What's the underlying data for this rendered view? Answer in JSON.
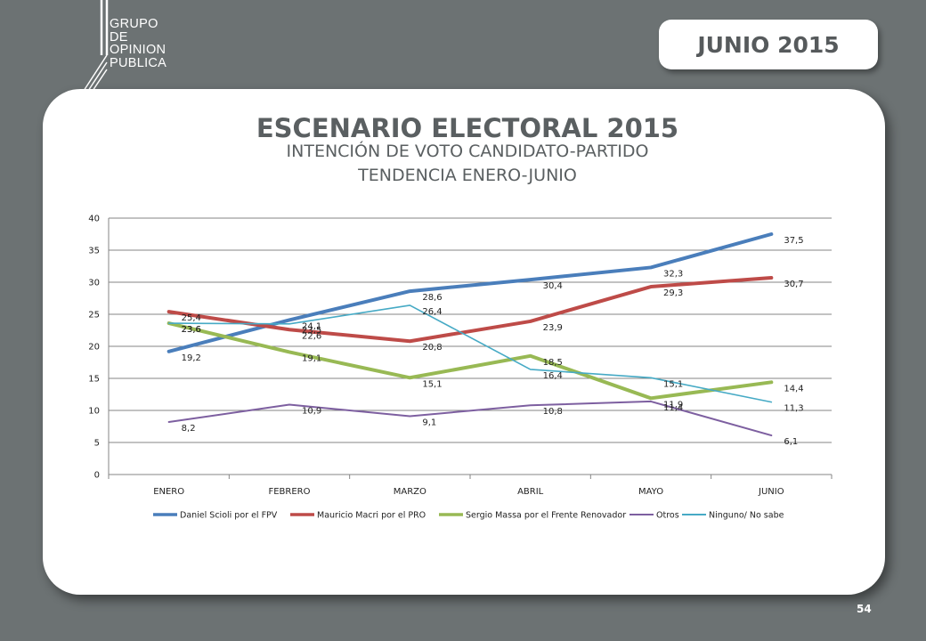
{
  "logo": {
    "lines": [
      "GRUPO",
      "DE",
      "OPINION",
      "PUBLICA"
    ]
  },
  "badge": "JUNIO 2015",
  "title": "ESCENARIO ELECTORAL 2015",
  "subtitle1": "INTENCIÓN DE VOTO CANDIDATO-PARTIDO",
  "subtitle2": "TENDENCIA ENERO-JUNIO",
  "page_number": "54",
  "colors": {
    "background": "#6c7273",
    "card": "#ffffff",
    "text": "#5a5f61"
  },
  "chart_data": {
    "type": "line",
    "categories": [
      "ENERO",
      "FEBRERO",
      "MARZO",
      "ABRIL",
      "MAYO",
      "JUNIO"
    ],
    "ylim": [
      0,
      40
    ],
    "yticks": [
      0,
      5,
      10,
      15,
      20,
      25,
      30,
      35,
      40
    ],
    "grid": true,
    "legend_position": "bottom",
    "xlabel": "",
    "ylabel": "",
    "series": [
      {
        "name": "Daniel Scioli por el FPV",
        "color": "#4a7ebb",
        "width": 4,
        "values": [
          19.2,
          24.1,
          28.6,
          30.4,
          32.3,
          37.5
        ],
        "labels": [
          "19,2",
          "24,1",
          "28,6",
          "30,4",
          "32,3",
          "37,5"
        ]
      },
      {
        "name": "Mauricio Macri por el PRO",
        "color": "#be4b48",
        "width": 4,
        "values": [
          25.4,
          22.6,
          20.8,
          23.9,
          29.3,
          30.7
        ],
        "labels": [
          "25,4",
          "22,6",
          "20,8",
          "23,9",
          "29,3",
          "30,7"
        ]
      },
      {
        "name": "Sergio Massa por el Frente Renovador",
        "color": "#98b954",
        "width": 4,
        "values": [
          23.6,
          19.1,
          15.1,
          18.5,
          11.9,
          14.4
        ],
        "labels": [
          "23,6",
          "19,1",
          "15,1",
          "18,5",
          "11,9",
          "14,4"
        ]
      },
      {
        "name": "Otros",
        "color": "#7d5fa0",
        "width": 2,
        "values": [
          8.2,
          10.9,
          9.1,
          10.8,
          11.4,
          6.1
        ],
        "labels": [
          "8,2",
          "10,9",
          "9,1",
          "10,8",
          "11,4",
          "6,1"
        ]
      },
      {
        "name": "Ninguno/ No sabe",
        "color": "#46aac5",
        "width": 1.6,
        "values": [
          23.6,
          23.5,
          26.4,
          16.4,
          15.1,
          11.3
        ],
        "labels": [
          "23,6",
          "23,5",
          "26,4",
          "16,4",
          "15,1",
          "11,3"
        ]
      }
    ]
  }
}
